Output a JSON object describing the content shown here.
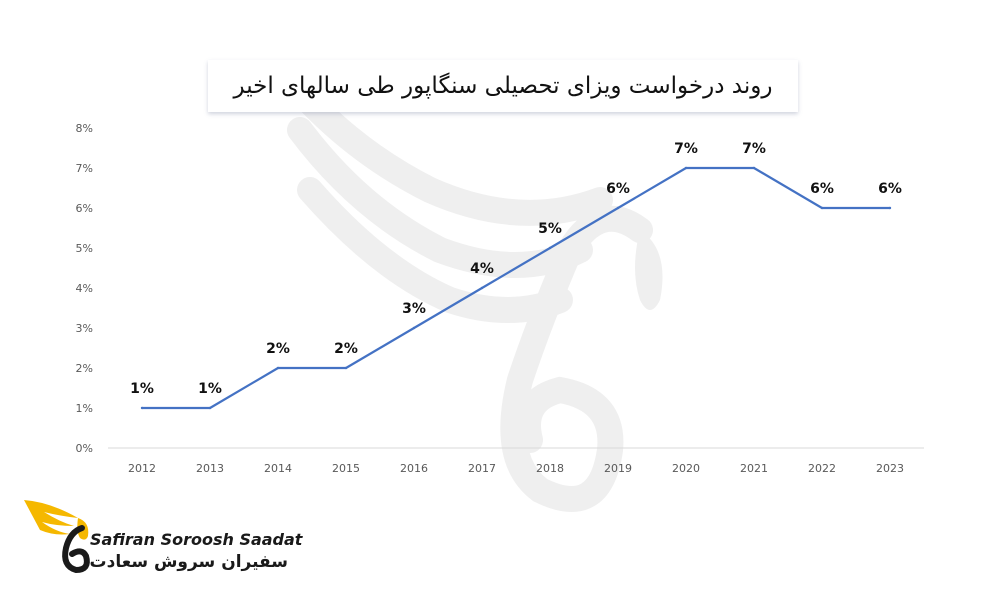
{
  "chart_data": {
    "type": "line",
    "title": "روند درخواست ویزای تحصیلی سنگاپور طی سالهای اخیر",
    "xlabel": "",
    "ylabel": "",
    "categories": [
      "2012",
      "2013",
      "2014",
      "2015",
      "2016",
      "2017",
      "2018",
      "2019",
      "2020",
      "2021",
      "2022",
      "2023"
    ],
    "series": [
      {
        "values": [
          1,
          1,
          2,
          2,
          3,
          4,
          5,
          6,
          7,
          7,
          6,
          6
        ],
        "data_labels": [
          "1%",
          "1%",
          "2%",
          "2%",
          "3%",
          "4%",
          "5%",
          "6%",
          "7%",
          "7%",
          "6%",
          "6%"
        ],
        "color": "#4472c4"
      }
    ],
    "ylim": [
      0,
      8
    ],
    "yticks": [
      "0%",
      "1%",
      "2%",
      "3%",
      "4%",
      "5%",
      "6%",
      "7%",
      "8%"
    ],
    "grid": false,
    "legend": "none"
  },
  "colors": {
    "line": "#4472c4",
    "axis": "#d9d9d9",
    "tick_text": "#595959",
    "label_text": "#111111",
    "watermark": "#eeeeee",
    "logo_accent": "#f5b800"
  },
  "logo": {
    "text_en": "Safiran Soroosh Saadat",
    "text_fa": "سفیران سروش سعادت",
    "icon": "wing-swan-icon"
  },
  "watermark": {
    "icon": "wing-swan-watermark-icon"
  }
}
